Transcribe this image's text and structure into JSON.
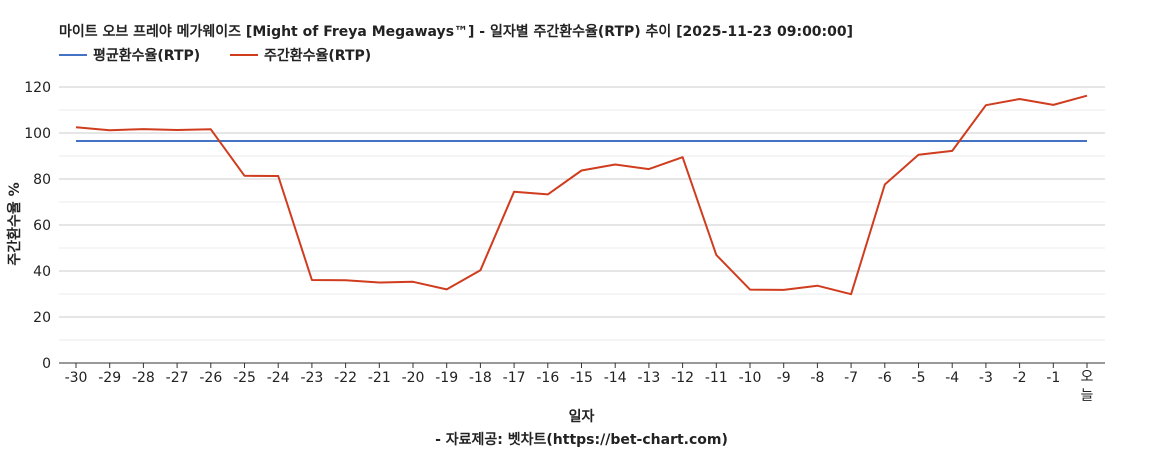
{
  "chart_data": {
    "type": "line",
    "title": "마이트 오브 프레야 메가웨이즈 [Might of Freya Megaways™] - 일자별 주간환수율(RTP) 추이 [2025-11-23 09:00:00]",
    "xlabel": "일자",
    "ylabel": "주간환수율 %",
    "source": "- 자료제공: 벳차트(https://bet-chart.com)",
    "legend_position": "top-left",
    "grid": true,
    "ylim": [
      0,
      120
    ],
    "yticks": [
      "0",
      "20",
      "40",
      "60",
      "80",
      "100",
      "120"
    ],
    "categories": [
      "-30",
      "-29",
      "-28",
      "-27",
      "-26",
      "-25",
      "-24",
      "-23",
      "-22",
      "-21",
      "-20",
      "-19",
      "-18",
      "-17",
      "-16",
      "-15",
      "-14",
      "-13",
      "-12",
      "-11",
      "-10",
      "-9",
      "-8",
      "-7",
      "-6",
      "-5",
      "-4",
      "-3",
      "-2",
      "-1",
      "오늘"
    ],
    "series": [
      {
        "name": "평균환수율(RTP)",
        "color": "#4472c4",
        "values": [
          96.5,
          96.5,
          96.5,
          96.5,
          96.5,
          96.5,
          96.5,
          96.5,
          96.5,
          96.5,
          96.5,
          96.5,
          96.5,
          96.5,
          96.5,
          96.5,
          96.5,
          96.5,
          96.5,
          96.5,
          96.5,
          96.5,
          96.5,
          96.5,
          96.5,
          96.5,
          96.5,
          96.5,
          96.5,
          96.5,
          96.5
        ]
      },
      {
        "name": "주간환수율(RTP)",
        "color": "#d03c1e",
        "values": [
          102.5,
          101.2,
          101.7,
          101.3,
          101.6,
          81.4,
          81.3,
          36.1,
          36.0,
          35.0,
          35.3,
          32.0,
          40.3,
          74.5,
          73.3,
          83.7,
          86.3,
          84.3,
          89.5,
          47.0,
          31.9,
          31.8,
          33.6,
          29.9,
          77.6,
          90.5,
          92.2,
          112.1,
          114.8,
          112.2,
          116.2
        ]
      }
    ]
  }
}
